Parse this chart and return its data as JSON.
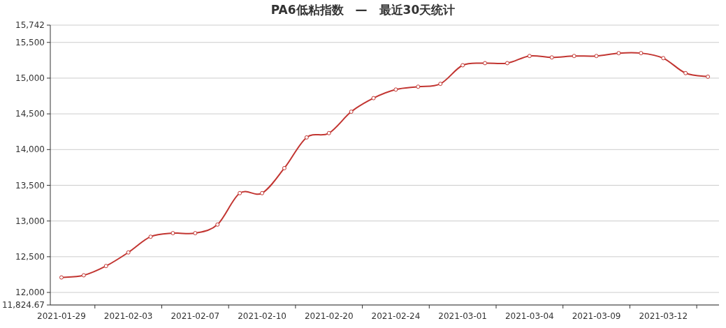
{
  "chart_data": {
    "type": "line",
    "title": "PA6低粘指数　—　最近30天统计",
    "categories": [
      "2021-01-29",
      null,
      null,
      "2021-02-03",
      null,
      null,
      "2021-02-07",
      null,
      null,
      "2021-02-10",
      null,
      null,
      "2021-02-20",
      null,
      null,
      "2021-02-24",
      null,
      null,
      "2021-03-01",
      null,
      null,
      "2021-03-04",
      null,
      null,
      "2021-03-09",
      null,
      null,
      "2021-03-12",
      null,
      null
    ],
    "series": [
      {
        "color": "#c23531",
        "values": [
          12210,
          12240,
          12370,
          12560,
          12780,
          12830,
          12830,
          12950,
          13390,
          13390,
          13740,
          14170,
          14230,
          14530,
          14720,
          14840,
          14880,
          14920,
          15180,
          15210,
          15210,
          15310,
          15290,
          15310,
          15310,
          15350,
          15350,
          15280,
          15070,
          15020
        ]
      }
    ],
    "ylim": [
      11824.67,
      15742
    ],
    "yticks": [
      {
        "value": 11824.67,
        "label": "11,824.67"
      },
      {
        "value": 12000,
        "label": "12,000"
      },
      {
        "value": 12500,
        "label": "12,500"
      },
      {
        "value": 13000,
        "label": "13,000"
      },
      {
        "value": 13500,
        "label": "13,500"
      },
      {
        "value": 14000,
        "label": "14,000"
      },
      {
        "value": 14500,
        "label": "14,500"
      },
      {
        "value": 15000,
        "label": "15,000"
      },
      {
        "value": 15500,
        "label": "15,500"
      },
      {
        "value": 15742,
        "label": "15,742"
      }
    ],
    "grid": "y",
    "marker": "circle",
    "line_style": "solid"
  }
}
